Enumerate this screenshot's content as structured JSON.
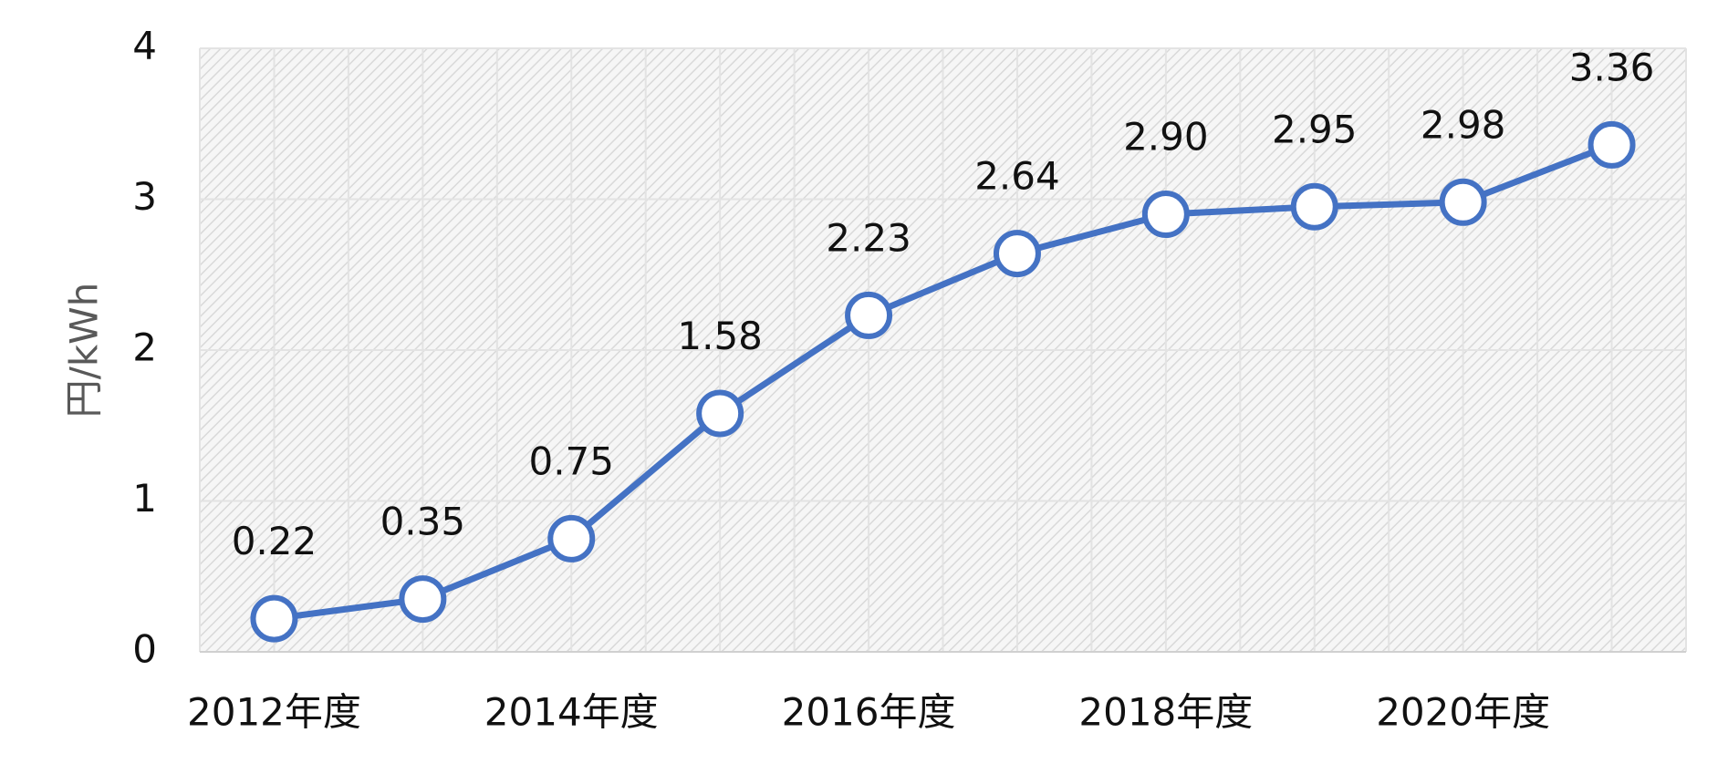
{
  "chart_data": {
    "type": "line",
    "y_label": "円/kWh",
    "categories": [
      "2012年度",
      null,
      "2014年度",
      null,
      "2016年度",
      null,
      "2018年度",
      null,
      "2020年度",
      null
    ],
    "values": [
      0.22,
      0.35,
      0.75,
      1.58,
      2.23,
      2.64,
      2.9,
      2.95,
      2.98,
      3.36
    ],
    "value_labels": [
      "0.22",
      "0.35",
      "0.75",
      "1.58",
      "2.23",
      "2.64",
      "2.90",
      "2.95",
      "2.98",
      "3.36"
    ],
    "color": "#4472c4",
    "ylim": [
      0,
      4
    ],
    "yticks": [
      0,
      1,
      2,
      3,
      4
    ],
    "grid": true
  }
}
